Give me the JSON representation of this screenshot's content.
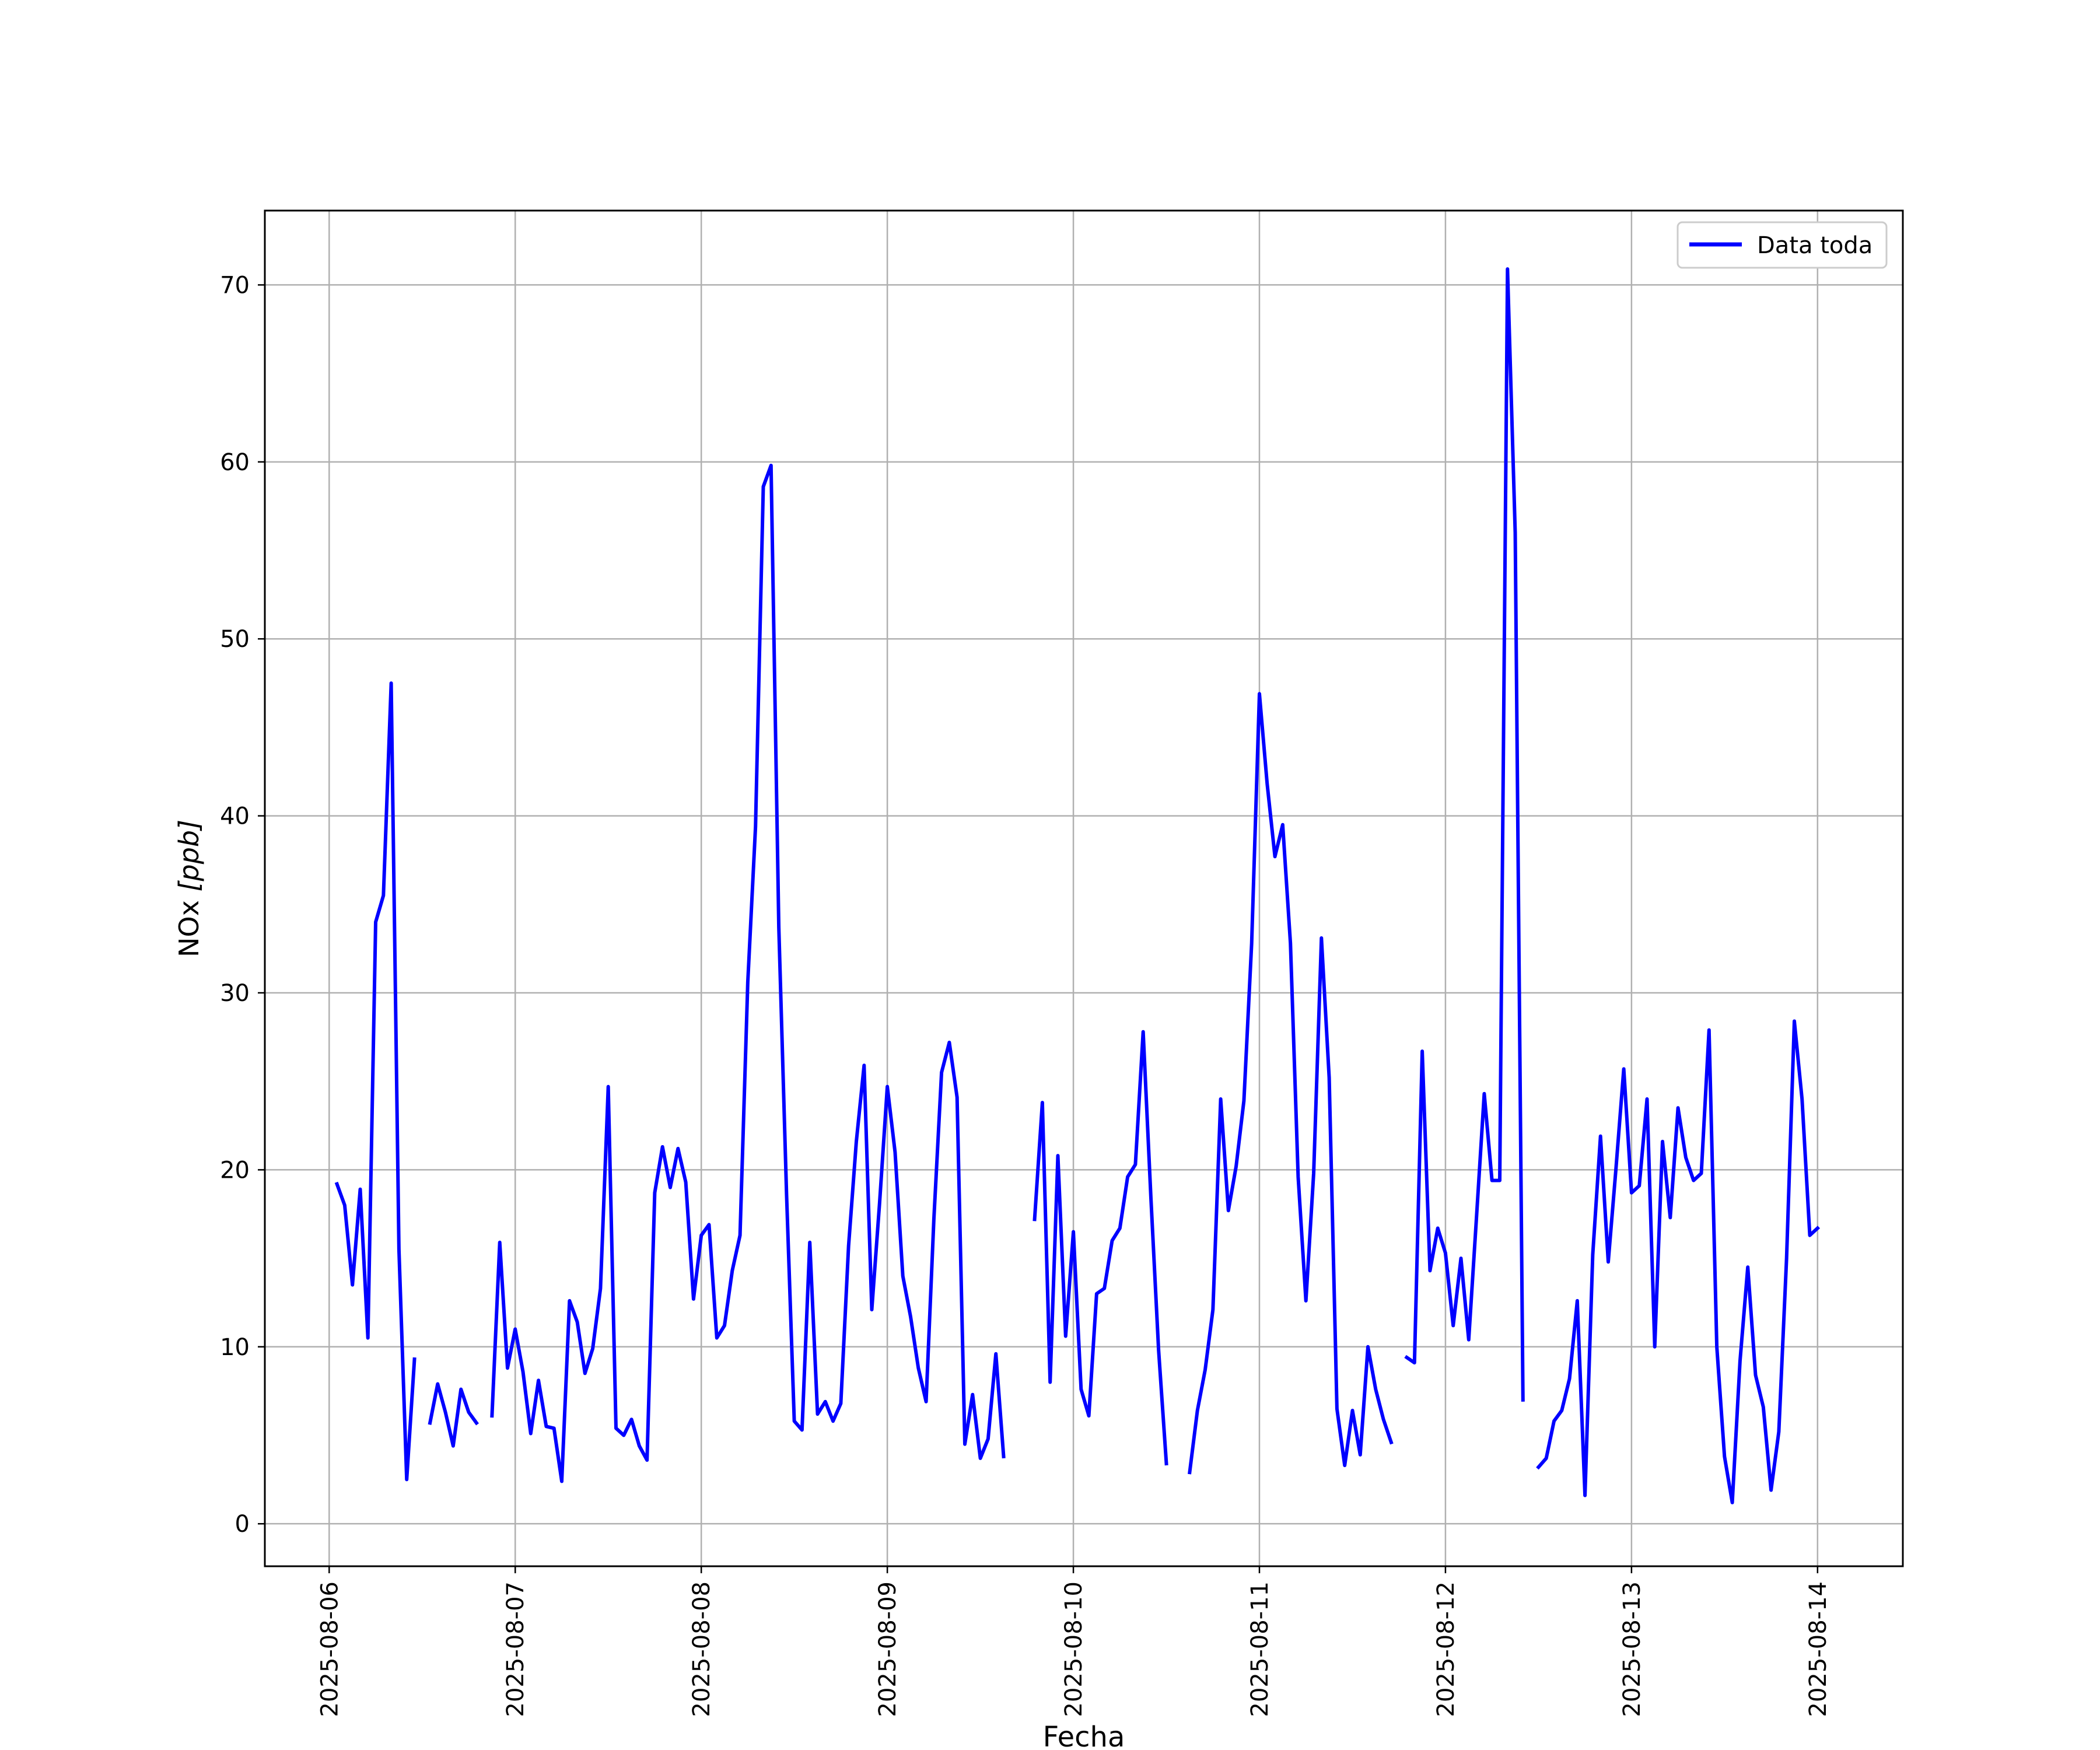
{
  "chart_data": {
    "type": "line",
    "title": "",
    "xlabel": "Fecha",
    "ylabel_main": "NOx ",
    "ylabel_unit": "[ppb]",
    "x_ticks": [
      "2025-08-06",
      "2025-08-07",
      "2025-08-08",
      "2025-08-09",
      "2025-08-10",
      "2025-08-11",
      "2025-08-12",
      "2025-08-13",
      "2025-08-14"
    ],
    "xlim": [
      "2025-08-05T15:42",
      "2025-08-14T11:00"
    ],
    "y_ticks": [
      0,
      10,
      20,
      30,
      40,
      50,
      60,
      70
    ],
    "ylim": [
      -2.4,
      74.2
    ],
    "grid": true,
    "legend_position": "top-right",
    "series": [
      {
        "name": "Data toda",
        "color": "#0000ff",
        "segments": [
          [
            [
              "2025-08-06T01:00",
              19.2
            ],
            [
              "2025-08-06T02:00",
              18.0
            ],
            [
              "2025-08-06T03:00",
              13.5
            ],
            [
              "2025-08-06T04:00",
              18.9
            ],
            [
              "2025-08-06T05:00",
              10.5
            ],
            [
              "2025-08-06T06:00",
              34.0
            ],
            [
              "2025-08-06T07:00",
              35.5
            ],
            [
              "2025-08-06T08:00",
              47.5
            ],
            [
              "2025-08-06T09:00",
              15.5
            ],
            [
              "2025-08-06T10:00",
              2.5
            ],
            [
              "2025-08-06T11:00",
              9.3
            ]
          ],
          [
            [
              "2025-08-06T13:00",
              5.7
            ],
            [
              "2025-08-06T14:00",
              7.9
            ],
            [
              "2025-08-06T15:00",
              6.3
            ],
            [
              "2025-08-06T16:00",
              4.4
            ],
            [
              "2025-08-06T17:00",
              7.6
            ],
            [
              "2025-08-06T18:00",
              6.3
            ],
            [
              "2025-08-06T19:00",
              5.7
            ]
          ],
          [
            [
              "2025-08-06T21:00",
              6.1
            ],
            [
              "2025-08-06T22:00",
              15.9
            ],
            [
              "2025-08-06T23:00",
              8.8
            ],
            [
              "2025-08-07T00:00",
              11.0
            ],
            [
              "2025-08-07T01:00",
              8.6
            ],
            [
              "2025-08-07T02:00",
              5.1
            ],
            [
              "2025-08-07T03:00",
              8.1
            ],
            [
              "2025-08-07T04:00",
              5.5
            ],
            [
              "2025-08-07T05:00",
              5.4
            ],
            [
              "2025-08-07T06:00",
              2.4
            ],
            [
              "2025-08-07T07:00",
              12.6
            ],
            [
              "2025-08-07T08:00",
              11.4
            ],
            [
              "2025-08-07T09:00",
              8.5
            ],
            [
              "2025-08-07T10:00",
              9.9
            ],
            [
              "2025-08-07T11:00",
              13.3
            ],
            [
              "2025-08-07T12:00",
              24.7
            ],
            [
              "2025-08-07T13:00",
              5.4
            ],
            [
              "2025-08-07T14:00",
              5.0
            ],
            [
              "2025-08-07T15:00",
              5.9
            ],
            [
              "2025-08-07T16:00",
              4.4
            ],
            [
              "2025-08-07T17:00",
              3.6
            ],
            [
              "2025-08-07T18:00",
              18.7
            ],
            [
              "2025-08-07T19:00",
              21.3
            ],
            [
              "2025-08-07T20:00",
              19.0
            ],
            [
              "2025-08-07T21:00",
              21.2
            ],
            [
              "2025-08-07T22:00",
              19.3
            ],
            [
              "2025-08-07T23:00",
              12.7
            ],
            [
              "2025-08-08T00:00",
              16.3
            ],
            [
              "2025-08-08T01:00",
              16.9
            ],
            [
              "2025-08-08T02:00",
              10.5
            ],
            [
              "2025-08-08T03:00",
              11.2
            ],
            [
              "2025-08-08T04:00",
              14.3
            ],
            [
              "2025-08-08T05:00",
              16.3
            ],
            [
              "2025-08-08T06:00",
              30.6
            ],
            [
              "2025-08-08T07:00",
              39.4
            ],
            [
              "2025-08-08T08:00",
              58.6
            ],
            [
              "2025-08-08T09:00",
              59.8
            ],
            [
              "2025-08-08T10:00",
              33.7
            ],
            [
              "2025-08-08T11:00",
              18.6
            ],
            [
              "2025-08-08T12:00",
              5.8
            ],
            [
              "2025-08-08T13:00",
              5.3
            ],
            [
              "2025-08-08T14:00",
              15.9
            ],
            [
              "2025-08-08T15:00",
              6.2
            ],
            [
              "2025-08-08T16:00",
              6.9
            ],
            [
              "2025-08-08T17:00",
              5.8
            ],
            [
              "2025-08-08T18:00",
              6.8
            ],
            [
              "2025-08-08T19:00",
              15.7
            ],
            [
              "2025-08-08T20:00",
              21.6
            ],
            [
              "2025-08-08T21:00",
              25.9
            ],
            [
              "2025-08-08T22:00",
              12.1
            ],
            [
              "2025-08-08T23:00",
              18.1
            ],
            [
              "2025-08-09T00:00",
              24.7
            ],
            [
              "2025-08-09T01:00",
              21.0
            ],
            [
              "2025-08-09T02:00",
              14.0
            ],
            [
              "2025-08-09T03:00",
              11.7
            ],
            [
              "2025-08-09T04:00",
              8.8
            ],
            [
              "2025-08-09T05:00",
              6.9
            ],
            [
              "2025-08-09T06:00",
              17.2
            ],
            [
              "2025-08-09T07:00",
              25.5
            ],
            [
              "2025-08-09T08:00",
              27.2
            ],
            [
              "2025-08-09T09:00",
              24.1
            ],
            [
              "2025-08-09T10:00",
              4.5
            ],
            [
              "2025-08-09T11:00",
              7.3
            ],
            [
              "2025-08-09T12:00",
              3.7
            ],
            [
              "2025-08-09T13:00",
              4.8
            ],
            [
              "2025-08-09T14:00",
              9.6
            ],
            [
              "2025-08-09T15:00",
              3.8
            ]
          ],
          [
            [
              "2025-08-09T19:00",
              17.2
            ],
            [
              "2025-08-09T20:00",
              23.8
            ],
            [
              "2025-08-09T21:00",
              8.0
            ],
            [
              "2025-08-09T22:00",
              20.8
            ],
            [
              "2025-08-09T23:00",
              10.6
            ],
            [
              "2025-08-10T00:00",
              16.5
            ],
            [
              "2025-08-10T01:00",
              7.6
            ],
            [
              "2025-08-10T02:00",
              6.1
            ],
            [
              "2025-08-10T03:00",
              13.0
            ],
            [
              "2025-08-10T04:00",
              13.3
            ],
            [
              "2025-08-10T05:00",
              16.0
            ],
            [
              "2025-08-10T06:00",
              16.7
            ],
            [
              "2025-08-10T07:00",
              19.6
            ],
            [
              "2025-08-10T08:00",
              20.3
            ],
            [
              "2025-08-10T09:00",
              27.8
            ],
            [
              "2025-08-10T10:00",
              18.4
            ],
            [
              "2025-08-10T11:00",
              9.8
            ],
            [
              "2025-08-10T12:00",
              3.4
            ]
          ],
          [
            [
              "2025-08-10T15:00",
              2.9
            ],
            [
              "2025-08-10T16:00",
              6.4
            ],
            [
              "2025-08-10T17:00",
              8.7
            ],
            [
              "2025-08-10T18:00",
              12.1
            ],
            [
              "2025-08-10T19:00",
              24.0
            ],
            [
              "2025-08-10T20:00",
              17.7
            ],
            [
              "2025-08-10T21:00",
              20.2
            ],
            [
              "2025-08-10T22:00",
              23.9
            ],
            [
              "2025-08-10T23:00",
              32.8
            ],
            [
              "2025-08-11T00:00",
              46.9
            ],
            [
              "2025-08-11T01:00",
              41.8
            ],
            [
              "2025-08-11T02:00",
              37.7
            ],
            [
              "2025-08-11T03:00",
              39.5
            ],
            [
              "2025-08-11T04:00",
              32.8
            ],
            [
              "2025-08-11T05:00",
              19.6
            ],
            [
              "2025-08-11T06:00",
              12.6
            ],
            [
              "2025-08-11T07:00",
              19.8
            ],
            [
              "2025-08-11T08:00",
              33.1
            ],
            [
              "2025-08-11T09:00",
              25.2
            ],
            [
              "2025-08-11T10:00",
              6.5
            ],
            [
              "2025-08-11T11:00",
              3.3
            ],
            [
              "2025-08-11T12:00",
              6.4
            ],
            [
              "2025-08-11T13:00",
              3.9
            ],
            [
              "2025-08-11T14:00",
              10.0
            ],
            [
              "2025-08-11T15:00",
              7.6
            ],
            [
              "2025-08-11T16:00",
              5.9
            ],
            [
              "2025-08-11T17:00",
              4.6
            ]
          ],
          [
            [
              "2025-08-11T19:00",
              9.4
            ],
            [
              "2025-08-11T20:00",
              9.1
            ],
            [
              "2025-08-11T21:00",
              26.7
            ],
            [
              "2025-08-11T22:00",
              14.3
            ],
            [
              "2025-08-11T23:00",
              16.7
            ],
            [
              "2025-08-12T00:00",
              15.3
            ],
            [
              "2025-08-12T01:00",
              11.2
            ],
            [
              "2025-08-12T02:00",
              15.0
            ],
            [
              "2025-08-12T03:00",
              10.4
            ],
            [
              "2025-08-12T04:00",
              17.3
            ],
            [
              "2025-08-12T05:00",
              24.3
            ],
            [
              "2025-08-12T06:00",
              19.4
            ],
            [
              "2025-08-12T07:00",
              19.4
            ],
            [
              "2025-08-12T08:00",
              70.9
            ],
            [
              "2025-08-12T09:00",
              56.0
            ],
            [
              "2025-08-12T10:00",
              7.0
            ]
          ],
          [
            [
              "2025-08-12T12:00",
              3.2
            ],
            [
              "2025-08-12T13:00",
              3.7
            ],
            [
              "2025-08-12T14:00",
              5.8
            ],
            [
              "2025-08-12T15:00",
              6.4
            ],
            [
              "2025-08-12T16:00",
              8.2
            ],
            [
              "2025-08-12T17:00",
              12.6
            ],
            [
              "2025-08-12T18:00",
              1.6
            ],
            [
              "2025-08-12T19:00",
              15.2
            ],
            [
              "2025-08-12T20:00",
              21.9
            ],
            [
              "2025-08-12T21:00",
              14.8
            ],
            [
              "2025-08-12T22:00",
              20.1
            ],
            [
              "2025-08-12T23:00",
              25.7
            ],
            [
              "2025-08-13T00:00",
              18.7
            ],
            [
              "2025-08-13T01:00",
              19.1
            ],
            [
              "2025-08-13T02:00",
              24.0
            ],
            [
              "2025-08-13T03:00",
              10.0
            ],
            [
              "2025-08-13T04:00",
              21.6
            ],
            [
              "2025-08-13T05:00",
              17.3
            ],
            [
              "2025-08-13T06:00",
              23.5
            ],
            [
              "2025-08-13T07:00",
              20.7
            ],
            [
              "2025-08-13T08:00",
              19.4
            ],
            [
              "2025-08-13T09:00",
              19.8
            ],
            [
              "2025-08-13T10:00",
              27.9
            ],
            [
              "2025-08-13T11:00",
              10.0
            ],
            [
              "2025-08-13T12:00",
              3.8
            ],
            [
              "2025-08-13T13:00",
              1.2
            ],
            [
              "2025-08-13T14:00",
              9.2
            ],
            [
              "2025-08-13T15:00",
              14.5
            ],
            [
              "2025-08-13T16:00",
              8.4
            ],
            [
              "2025-08-13T17:00",
              6.6
            ],
            [
              "2025-08-13T18:00",
              1.9
            ],
            [
              "2025-08-13T19:00",
              5.2
            ],
            [
              "2025-08-13T20:00",
              15.0
            ],
            [
              "2025-08-13T21:00",
              28.4
            ],
            [
              "2025-08-13T22:00",
              24.0
            ],
            [
              "2025-08-13T23:00",
              16.3
            ],
            [
              "2025-08-14T00:00",
              16.7
            ]
          ]
        ]
      }
    ]
  }
}
